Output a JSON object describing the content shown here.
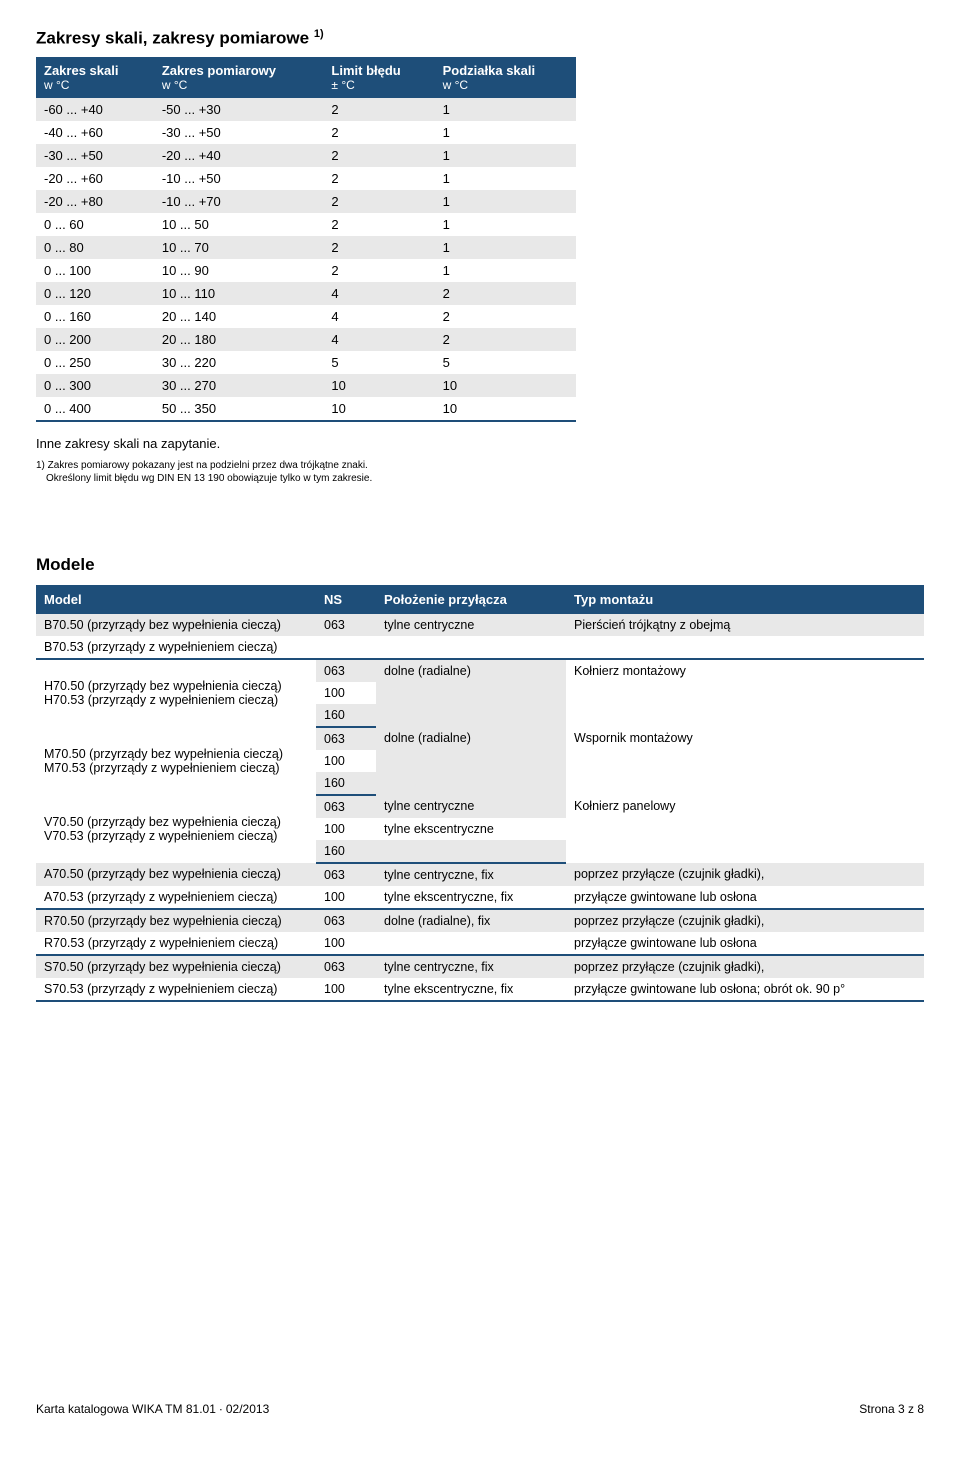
{
  "section1": {
    "title": "Zakresy skali, zakresy pomiarowe ",
    "title_sup": "1)",
    "headers": [
      {
        "main": "Zakres skali",
        "sub": "w °C"
      },
      {
        "main": "Zakres pomiarowy",
        "sub": "w °C"
      },
      {
        "main": "Limit błędu",
        "sub": "± °C"
      },
      {
        "main": "Podziałka skali",
        "sub": "w °C"
      }
    ],
    "rows": [
      [
        "-60 ... +40",
        "-50 ... +30",
        "2",
        "1"
      ],
      [
        "-40 ... +60",
        "-30 ... +50",
        "2",
        "1"
      ],
      [
        "-30 ... +50",
        "-20 ... +40",
        "2",
        "1"
      ],
      [
        "-20 ... +60",
        "-10 ... +50",
        "2",
        "1"
      ],
      [
        "-20 ... +80",
        "-10 ... +70",
        "2",
        "1"
      ],
      [
        "0 ... 60",
        "10 ... 50",
        "2",
        "1"
      ],
      [
        "0 ... 80",
        "10 ... 70",
        "2",
        "1"
      ],
      [
        "0 ... 100",
        "10 ... 90",
        "2",
        "1"
      ],
      [
        "0 ... 120",
        "10 ... 110",
        "4",
        "2"
      ],
      [
        "0 ... 160",
        "20 ... 140",
        "4",
        "2"
      ],
      [
        "0 ... 200",
        "20 ... 180",
        "4",
        "2"
      ],
      [
        "0 ... 250",
        "30 ... 220",
        "5",
        "5"
      ],
      [
        "0 ... 300",
        "30 ... 270",
        "10",
        "10"
      ],
      [
        "0 ... 400",
        "50 ... 350",
        "10",
        "10"
      ]
    ],
    "note": "Inne zakresy skali na zapytanie.",
    "footnote1": "1) Zakres pomiarowy pokazany jest na podzielni przez dwa trójkątne znaki.",
    "footnote2": "Określony limit błędu wg DIN EN 13 190 obowiązuje tylko w tym zakresie."
  },
  "section2": {
    "title": "Modele",
    "headers": [
      "Model",
      "NS",
      "Położenie przyłącza",
      "Typ montażu"
    ],
    "g1": {
      "m1": "B70.50 (przyrządy bez wypełnienia cieczą)",
      "m2": "B70.53 (przyrządy z wypełnieniem cieczą)",
      "ns": "063",
      "pos": "tylne centryczne",
      "mount": "Pierścień trójkątny z obejmą"
    },
    "g2": {
      "m1": "H70.50 (przyrządy bez wypełnienia cieczą)",
      "m2": "H70.53 (przyrządy z wypełnieniem cieczą)",
      "ns1": "063",
      "ns2": "100",
      "ns3": "160",
      "pos": "dolne (radialne)",
      "mount": "Kołnierz montażowy"
    },
    "g3": {
      "m1": "M70.50 (przyrządy bez wypełnienia cieczą)",
      "m2": "M70.53 (przyrządy z wypełnieniem cieczą)",
      "ns1": "063",
      "ns2": "100",
      "ns3": "160",
      "pos": "dolne (radialne)",
      "mount": "Wspornik montażowy"
    },
    "g4": {
      "m1": "V70.50 (przyrządy bez wypełnienia cieczą)",
      "m2": "V70.53 (przyrządy z wypełnieniem cieczą)",
      "ns1": "063",
      "ns2": "100",
      "ns3": "160",
      "pos1": "tylne centryczne",
      "pos2": "tylne ekscentryczne",
      "mount": "Kołnierz panelowy"
    },
    "g5": {
      "m1": "A70.50 (przyrządy bez wypełnienia cieczą)",
      "m2": "A70.53 (przyrządy z wypełnieniem cieczą)",
      "ns1": "063",
      "ns2": "100",
      "pos1": "tylne centryczne, fix",
      "pos2": "tylne ekscentryczne, fix",
      "mount1": "poprzez przyłącze (czujnik gładki),",
      "mount2": "przyłącze gwintowane lub osłona"
    },
    "g6": {
      "m1": "R70.50 (przyrządy bez wypełnienia cieczą)",
      "m2": "R70.53 (przyrządy z wypełnieniem cieczą)",
      "ns1": "063",
      "ns2": "100",
      "pos": "dolne (radialne), fix",
      "mount1": "poprzez przyłącze (czujnik gładki),",
      "mount2": "przyłącze gwintowane lub osłona"
    },
    "g7": {
      "m1": "S70.50 (przyrządy bez wypełnienia cieczą)",
      "m2": "S70.53 (przyrządy z wypełnieniem cieczą)",
      "ns1": "063",
      "ns2": "100",
      "pos1": "tylne centryczne, fix",
      "pos2": "tylne ekscentryczne, fix",
      "mount1": "poprzez przyłącze (czujnik gładki),",
      "mount2": "przyłącze gwintowane lub osłona; obrót ok. 90 p°"
    }
  },
  "footer": {
    "left": "Karta katalogowa WIKA TM 81.01 ∙ 02/2013",
    "right": "Strona 3 z 8"
  }
}
